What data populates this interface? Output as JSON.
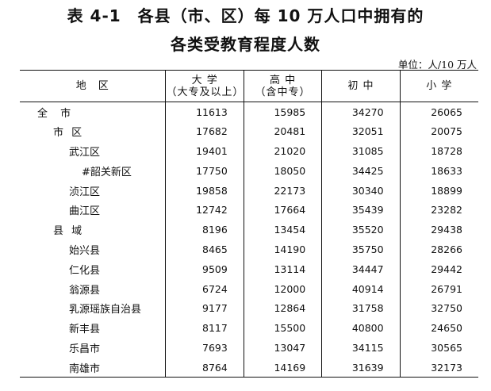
{
  "title_line1": "表 4-1　各县（市、区）每 10 万人口中拥有的",
  "title_line2": "各类受教育程度人数",
  "unit": "单位：人/10 万人",
  "headers": {
    "region": "地　区",
    "university_1": "大 学",
    "university_2": "（大专及以上）",
    "high_1": "高 中",
    "high_2": "（含中专）",
    "junior": "初 中",
    "primary": "小 学"
  },
  "rows": [
    {
      "name": "全 市",
      "level": 0,
      "university": "11613",
      "high": "15985",
      "junior": "34270",
      "primary": "26065"
    },
    {
      "name": "市 区",
      "level": 1,
      "university": "17682",
      "high": "20481",
      "junior": "32051",
      "primary": "20075"
    },
    {
      "name": "武江区",
      "level": 2,
      "university": "19401",
      "high": "21020",
      "junior": "31085",
      "primary": "18728"
    },
    {
      "name": "#韶关新区",
      "level": 3,
      "university": "17750",
      "high": "18050",
      "junior": "34425",
      "primary": "18633"
    },
    {
      "name": "浈江区",
      "level": 2,
      "university": "19858",
      "high": "22173",
      "junior": "30340",
      "primary": "18899"
    },
    {
      "name": "曲江区",
      "level": 2,
      "university": "12742",
      "high": "17664",
      "junior": "35439",
      "primary": "23282"
    },
    {
      "name": "县 域",
      "level": 1,
      "university": "8196",
      "high": "13454",
      "junior": "35520",
      "primary": "29438"
    },
    {
      "name": "始兴县",
      "level": 2,
      "university": "8465",
      "high": "14190",
      "junior": "35750",
      "primary": "28266"
    },
    {
      "name": "仁化县",
      "level": 2,
      "university": "9509",
      "high": "13114",
      "junior": "34447",
      "primary": "29442"
    },
    {
      "name": "翁源县",
      "level": 2,
      "university": "6724",
      "high": "12000",
      "junior": "40914",
      "primary": "26791"
    },
    {
      "name": "乳源瑶族自治县",
      "level": 2,
      "university": "9177",
      "high": "12864",
      "junior": "31758",
      "primary": "32750"
    },
    {
      "name": "新丰县",
      "level": 2,
      "university": "8117",
      "high": "15500",
      "junior": "40800",
      "primary": "24650"
    },
    {
      "name": "乐昌市",
      "level": 2,
      "university": "7693",
      "high": "13047",
      "junior": "34115",
      "primary": "30565"
    },
    {
      "name": "南雄市",
      "level": 2,
      "university": "8764",
      "high": "14169",
      "junior": "31639",
      "primary": "32173"
    }
  ]
}
